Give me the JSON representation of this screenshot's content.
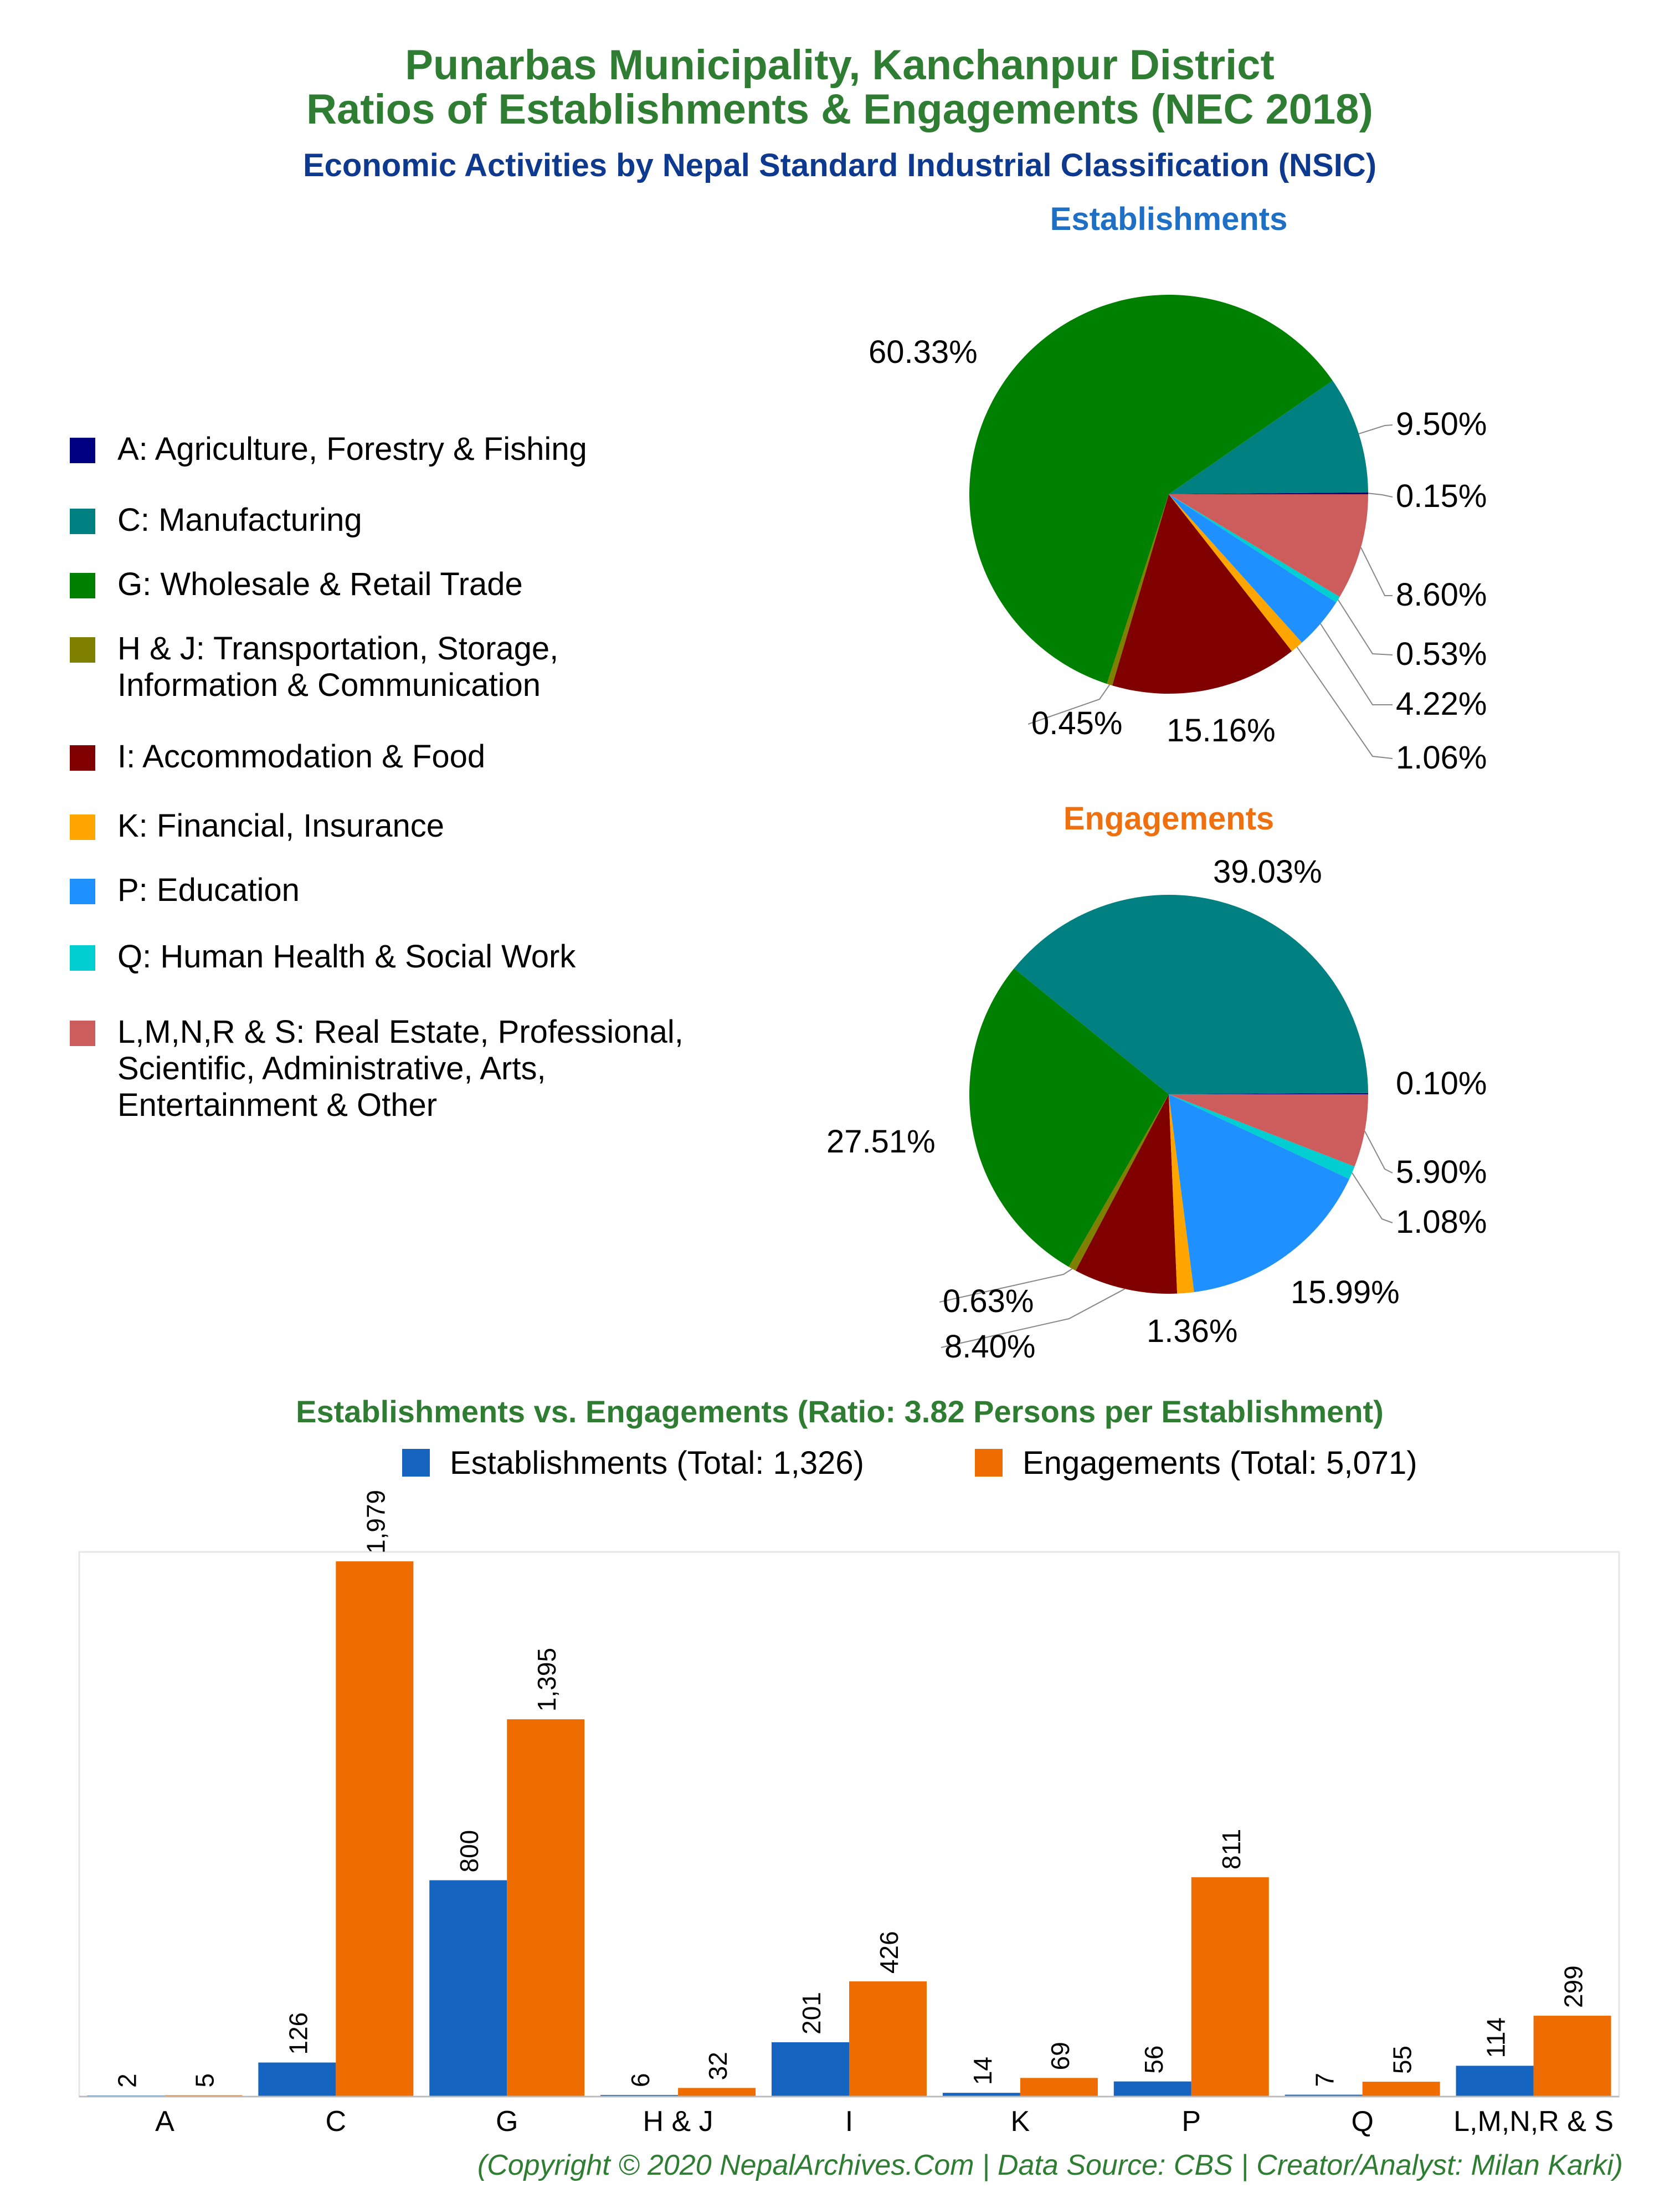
{
  "header": {
    "title_line1": "Punarbas Municipality, Kanchanpur District",
    "title_line2": "Ratios of Establishments & Engagements (NEC 2018)",
    "subtitle": "Economic Activities by Nepal Standard Industrial Classification (NSIC)"
  },
  "colors": {
    "title": "#2e7d32",
    "subtitle": "#0d3a8e",
    "establishments_title": "#1f6fc5",
    "engagements_title": "#ef7010",
    "bar_establishments": "#1565c0",
    "bar_engagements": "#ef6c00",
    "footer": "#2e7d32"
  },
  "legend": {
    "items": [
      {
        "key": "A",
        "lines": [
          "A: Agriculture, Forestry & Fishing"
        ],
        "color": "#000080"
      },
      {
        "key": "C",
        "lines": [
          "C: Manufacturing"
        ],
        "color": "#008080"
      },
      {
        "key": "G",
        "lines": [
          "G: Wholesale & Retail Trade"
        ],
        "color": "#008000"
      },
      {
        "key": "HJ",
        "lines": [
          "H & J: Transportation, Storage,",
          "Information & Communication"
        ],
        "color": "#808000"
      },
      {
        "key": "I",
        "lines": [
          "I: Accommodation & Food"
        ],
        "color": "#800000"
      },
      {
        "key": "K",
        "lines": [
          "K: Financial, Insurance"
        ],
        "color": "#ffa500"
      },
      {
        "key": "P",
        "lines": [
          "P: Education"
        ],
        "color": "#1e90ff"
      },
      {
        "key": "Q",
        "lines": [
          "Q: Human Health & Social Work"
        ],
        "color": "#00ced1"
      },
      {
        "key": "LMNRS",
        "lines": [
          "L,M,N,R & S: Real Estate, Professional,",
          "Scientific, Administrative, Arts,",
          "Entertainment & Other"
        ],
        "color": "#cd5c5c"
      }
    ]
  },
  "chart_data": [
    {
      "type": "pie",
      "title": "Establishments",
      "slices": [
        {
          "key": "A",
          "value": 0.15,
          "label": "0.15%"
        },
        {
          "key": "C",
          "value": 9.5,
          "label": "9.50%"
        },
        {
          "key": "G",
          "value": 60.33,
          "label": "60.33%"
        },
        {
          "key": "HJ",
          "value": 0.45,
          "label": "0.45%"
        },
        {
          "key": "I",
          "value": 15.16,
          "label": "15.16%"
        },
        {
          "key": "K",
          "value": 1.06,
          "label": "1.06%"
        },
        {
          "key": "P",
          "value": 4.22,
          "label": "4.22%"
        },
        {
          "key": "Q",
          "value": 0.53,
          "label": "0.53%"
        },
        {
          "key": "LMNRS",
          "value": 8.6,
          "label": "8.60%"
        }
      ]
    },
    {
      "type": "pie",
      "title": "Engagements",
      "slices": [
        {
          "key": "A",
          "value": 0.1,
          "label": "0.10%"
        },
        {
          "key": "C",
          "value": 39.03,
          "label": "39.03%"
        },
        {
          "key": "G",
          "value": 27.51,
          "label": "27.51%"
        },
        {
          "key": "HJ",
          "value": 0.63,
          "label": "0.63%"
        },
        {
          "key": "I",
          "value": 8.4,
          "label": "8.40%"
        },
        {
          "key": "K",
          "value": 1.36,
          "label": "1.36%"
        },
        {
          "key": "P",
          "value": 15.99,
          "label": "15.99%"
        },
        {
          "key": "Q",
          "value": 1.08,
          "label": "1.08%"
        },
        {
          "key": "LMNRS",
          "value": 5.9,
          "label": "5.90%"
        }
      ]
    },
    {
      "type": "bar",
      "title": "Establishments vs. Engagements (Ratio: 3.82 Persons per Establishment)",
      "categories": [
        "A",
        "C",
        "G",
        "H & J",
        "I",
        "K",
        "P",
        "Q",
        "L,M,N,R & S"
      ],
      "series": [
        {
          "name": "Establishments (Total: 1,326)",
          "values": [
            2,
            126,
            800,
            6,
            201,
            14,
            56,
            7,
            114
          ],
          "labels": [
            "2",
            "126",
            "800",
            "6",
            "201",
            "14",
            "56",
            "7",
            "114"
          ]
        },
        {
          "name": "Engagements (Total: 5,071)",
          "values": [
            5,
            1979,
            1395,
            32,
            426,
            69,
            811,
            55,
            299
          ],
          "labels": [
            "5",
            "1,979",
            "1,395",
            "32",
            "426",
            "69",
            "811",
            "55",
            "299"
          ]
        }
      ],
      "ylim": [
        0,
        1979
      ],
      "grid": false,
      "legend_position": "top"
    }
  ],
  "footer": {
    "credit": "(Copyright © 2020 NepalArchives.Com | Data Source: CBS | Creator/Analyst: Milan Karki)"
  }
}
